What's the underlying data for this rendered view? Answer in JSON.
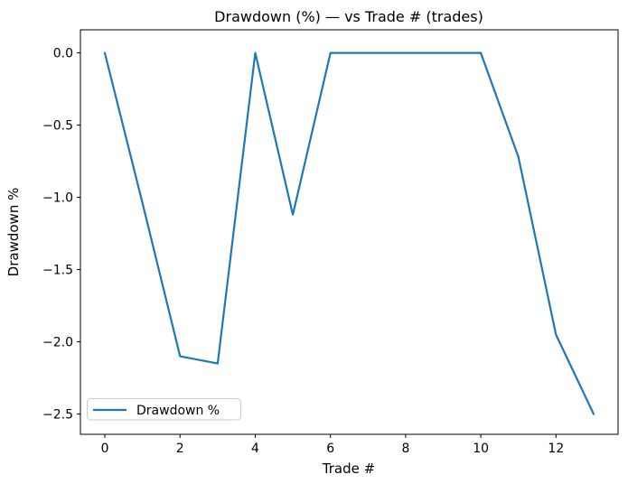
{
  "chart_data": {
    "type": "line",
    "title": "Drawdown (%) — vs Trade # (trades)",
    "xlabel": "Trade #",
    "ylabel": "Drawdown %",
    "x": [
      0,
      1,
      2,
      3,
      4,
      5,
      6,
      7,
      8,
      9,
      10,
      11,
      12,
      13
    ],
    "series": [
      {
        "name": "Drawdown %",
        "values": [
          0.0,
          -1.04,
          -2.1,
          -2.15,
          0.0,
          -1.12,
          0.0,
          0.0,
          0.0,
          0.0,
          0.0,
          -0.72,
          -1.95,
          -2.5
        ],
        "color": "#1f77b4"
      }
    ],
    "xticks": [
      0,
      2,
      4,
      6,
      8,
      10,
      12
    ],
    "xtick_labels": [
      "0",
      "2",
      "4",
      "6",
      "8",
      "10",
      "12"
    ],
    "yticks": [
      0.0,
      -0.5,
      -1.0,
      -1.5,
      -2.0,
      -2.5
    ],
    "ytick_labels": [
      "0.0",
      "−0.5",
      "−1.0",
      "−1.5",
      "−2.0",
      "−2.5"
    ],
    "xlim": [
      -0.65,
      13.65
    ],
    "ylim": [
      -2.64,
      0.16
    ],
    "grid": false,
    "legend": {
      "label": "Drawdown %",
      "position": "lower left"
    },
    "colors": {
      "line": "#1f77b4",
      "spine": "#000000",
      "text": "#000000",
      "legend_border": "#cccccc",
      "background": "#ffffff"
    }
  }
}
